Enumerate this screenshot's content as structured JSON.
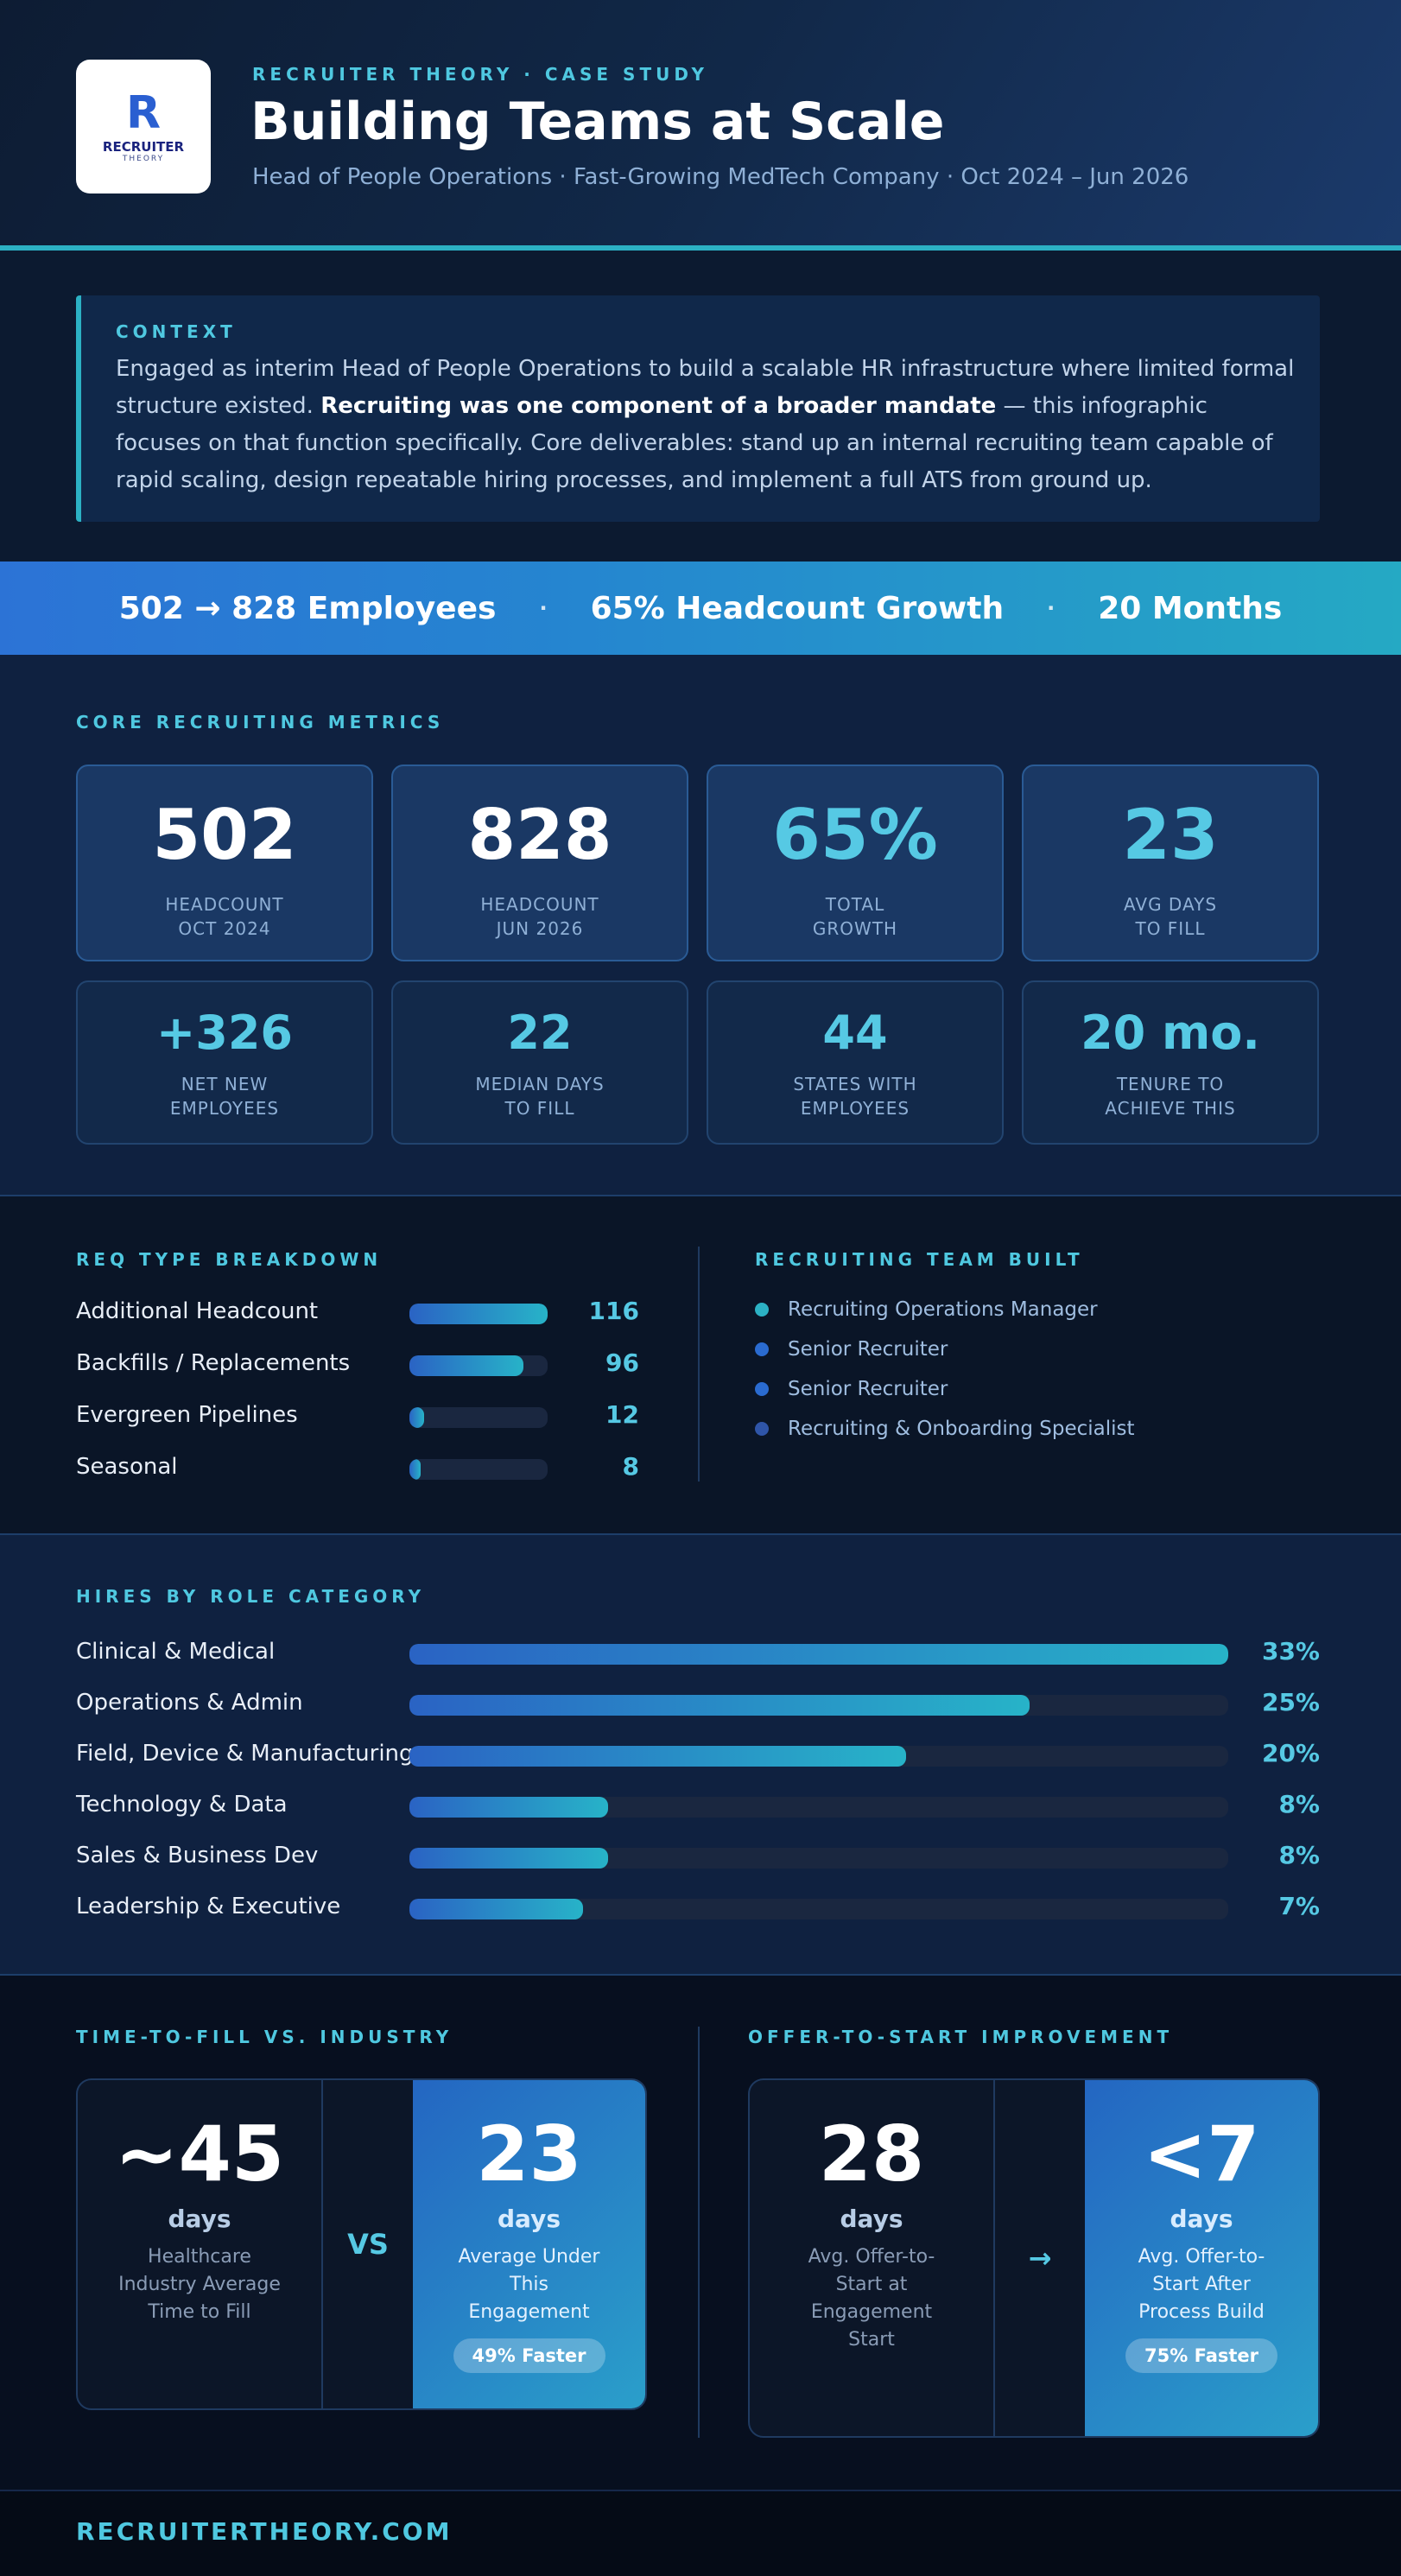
{
  "header": {
    "logo_mark": "R",
    "logo_name": "RECRUITER",
    "logo_sub": "THEORY",
    "eyebrow": "RECRUITER THEORY  ·  CASE STUDY",
    "title": "Building Teams at Scale",
    "subtitle": "Head of People Operations  ·  Fast-Growing MedTech Company  ·  Oct 2024 – Jun 2026"
  },
  "context": {
    "label": "CONTEXT",
    "text_before": "Engaged as interim Head of People Operations to build a scalable HR infrastructure where limited formal structure existed. ",
    "text_bold": "Recruiting was one component of a broader mandate",
    "text_after": " — this infographic focuses on that function specifically. Core deliverables: stand up an internal recruiting team capable of rapid scaling, design repeatable hiring processes, and implement a full ATS from ground up."
  },
  "banner": {
    "item1": "502 → 828 Employees",
    "item2": "65% Headcount Growth",
    "item3": "20 Months",
    "separator": "·"
  },
  "metrics": {
    "label": "CORE RECRUITING METRICS",
    "primary": [
      {
        "value": "502",
        "label": "HEADCOUNT\nOCT 2024",
        "style": "white"
      },
      {
        "value": "828",
        "label": "HEADCOUNT\nJUN 2026",
        "style": "white"
      },
      {
        "value": "65%",
        "label": "TOTAL\nGROWTH",
        "style": "cyan"
      },
      {
        "value": "23",
        "label": "AVG DAYS\nTO FILL",
        "style": "cyan"
      }
    ],
    "secondary": [
      {
        "value": "+326",
        "label": "NET NEW\nEMPLOYEES"
      },
      {
        "value": "22",
        "label": "MEDIAN DAYS\nTO FILL"
      },
      {
        "value": "44",
        "label": "STATES WITH\nEMPLOYEES"
      },
      {
        "value": "20 mo.",
        "label": "TENURE TO\nACHIEVE THIS"
      }
    ]
  },
  "req_breakdown": {
    "label": "REQ TYPE BREAKDOWN",
    "max": 116,
    "rows": [
      {
        "label": "Additional Headcount",
        "value": 116
      },
      {
        "label": "Backfills / Replacements",
        "value": 96
      },
      {
        "label": "Evergreen Pipelines",
        "value": 12
      },
      {
        "label": "Seasonal",
        "value": 8
      }
    ]
  },
  "team": {
    "label": "RECRUITING TEAM BUILT",
    "items": [
      {
        "label": "Recruiting Operations Manager",
        "color": "#2cb1c4"
      },
      {
        "label": "Senior Recruiter",
        "color": "#2a6bd0"
      },
      {
        "label": "Senior Recruiter",
        "color": "#2a6bd0"
      },
      {
        "label": "Recruiting & Onboarding Specialist",
        "color": "#2f55a8"
      }
    ]
  },
  "hires": {
    "label": "HIRES BY ROLE CATEGORY",
    "max_percent": 33,
    "rows": [
      {
        "label": "Clinical & Medical",
        "percent": 33,
        "display": "33%"
      },
      {
        "label": "Operations & Admin",
        "percent": 25,
        "display": "25%"
      },
      {
        "label": "Field, Device & Manufacturing",
        "percent": 20,
        "display": "20%"
      },
      {
        "label": "Technology & Data",
        "percent": 8,
        "display": "8%"
      },
      {
        "label": "Sales & Business Dev",
        "percent": 8,
        "display": "8%"
      },
      {
        "label": "Leadership & Executive",
        "percent": 7,
        "display": "7%"
      }
    ]
  },
  "ttf": {
    "label": "TIME-TO-FILL VS. INDUSTRY",
    "left_num": "~45",
    "left_unit": "days",
    "left_desc": "Healthcare Industry Average Time to Fill",
    "mid": "VS",
    "right_num": "23",
    "right_unit": "days",
    "right_desc": "Average Under This Engagement",
    "pill": "49% Faster"
  },
  "ots": {
    "label": "OFFER-TO-START IMPROVEMENT",
    "left_num": "28",
    "left_unit": "days",
    "left_desc": "Avg. Offer-to-Start at Engagement Start",
    "mid": "→",
    "right_num": "<7",
    "right_unit": "days",
    "right_desc": "Avg. Offer-to-Start After Process Build",
    "pill": "75% Faster"
  },
  "footer": {
    "url": "RECRUITERTHEORY.COM"
  }
}
